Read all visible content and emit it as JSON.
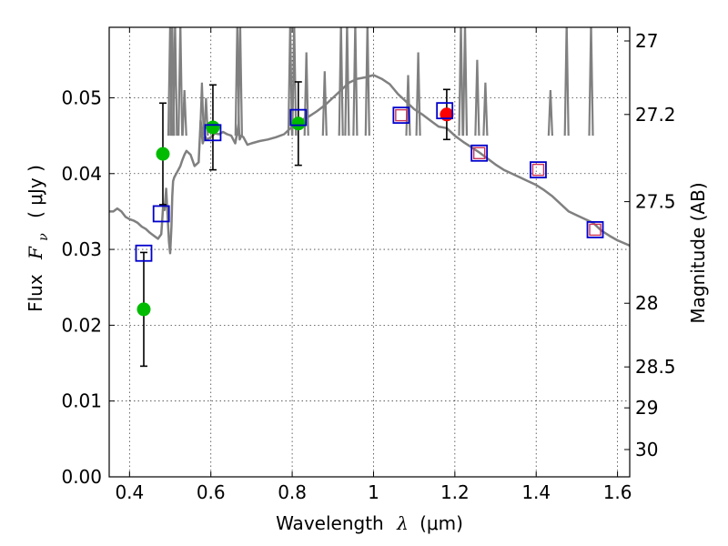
{
  "chart_data": {
    "type": "scatter",
    "title": "",
    "xlabel": "Wavelength",
    "xlabel_symbol": "λ",
    "xlabel_unit": "(μm)",
    "ylabel_prefix": "Flux",
    "ylabel_symbol": "F",
    "ylabel_subscript": "ν",
    "ylabel_unit": "( μJy )",
    "y2label": "Magnitude (AB)",
    "xlim": [
      0.35,
      1.63
    ],
    "ylim": [
      0.0,
      0.0593
    ],
    "grid": true,
    "x_ticks": [
      0.4,
      0.6,
      0.8,
      1.0,
      1.2,
      1.4,
      1.6
    ],
    "x_tick_labels": [
      "0.4",
      "0.6",
      "0.8",
      "1",
      "1.2",
      "1.4",
      "1.6"
    ],
    "y_ticks": [
      0.0,
      0.01,
      0.02,
      0.03,
      0.04,
      0.05
    ],
    "y_tick_labels": [
      "0.00",
      "0.01",
      "0.02",
      "0.03",
      "0.04",
      "0.05"
    ],
    "y2_ticks": [
      {
        "label": "27",
        "flux": 0.0575
      },
      {
        "label": "27.2",
        "flux": 0.0478
      },
      {
        "label": "27.5",
        "flux": 0.0363
      },
      {
        "label": "28",
        "flux": 0.0229
      },
      {
        "label": "28.5",
        "flux": 0.0145
      },
      {
        "label": "29",
        "flux": 0.0091
      },
      {
        "label": "30",
        "flux": 0.0036
      }
    ],
    "series": [
      {
        "name": "model spectrum",
        "kind": "line",
        "color": "#808080",
        "x": [
          0.35,
          0.36,
          0.37,
          0.38,
          0.39,
          0.4,
          0.41,
          0.42,
          0.43,
          0.44,
          0.45,
          0.46,
          0.465,
          0.47,
          0.478,
          0.48,
          0.483,
          0.486,
          0.49,
          0.497,
          0.5,
          0.503,
          0.505,
          0.507,
          0.51,
          0.515,
          0.52,
          0.525,
          0.53,
          0.535,
          0.54,
          0.55,
          0.56,
          0.57,
          0.575,
          0.58,
          0.585,
          0.59,
          0.6,
          0.61,
          0.62,
          0.63,
          0.64,
          0.65,
          0.66,
          0.665,
          0.668,
          0.671,
          0.675,
          0.68,
          0.69,
          0.7,
          0.72,
          0.74,
          0.76,
          0.78,
          0.8,
          0.82,
          0.84,
          0.86,
          0.88,
          0.9,
          0.92,
          0.94,
          0.96,
          0.98,
          1.0,
          1.02,
          1.04,
          1.06,
          1.08,
          1.1,
          1.12,
          1.14,
          1.16,
          1.18,
          1.2,
          1.22,
          1.24,
          1.26,
          1.28,
          1.3,
          1.32,
          1.34,
          1.36,
          1.38,
          1.4,
          1.42,
          1.44,
          1.46,
          1.48,
          1.5,
          1.52,
          1.54,
          1.56,
          1.58,
          1.6,
          1.63
        ],
        "y": [
          0.035,
          0.035,
          0.0354,
          0.035,
          0.0343,
          0.034,
          0.0338,
          0.0335,
          0.033,
          0.0327,
          0.0322,
          0.0318,
          0.0316,
          0.0314,
          0.032,
          0.0335,
          0.036,
          0.0352,
          0.038,
          0.031,
          0.0295,
          0.033,
          0.037,
          0.039,
          0.0395,
          0.04,
          0.0405,
          0.041,
          0.0418,
          0.0425,
          0.043,
          0.0425,
          0.041,
          0.0415,
          0.047,
          0.044,
          0.045,
          0.0445,
          0.0448,
          0.0453,
          0.0452,
          0.0455,
          0.0452,
          0.045,
          0.044,
          0.0455,
          0.0465,
          0.0445,
          0.045,
          0.0448,
          0.0438,
          0.044,
          0.0443,
          0.0445,
          0.0448,
          0.0452,
          0.0462,
          0.047,
          0.0475,
          0.0482,
          0.049,
          0.05,
          0.051,
          0.052,
          0.0525,
          0.0527,
          0.053,
          0.0525,
          0.0518,
          0.0505,
          0.0495,
          0.0485,
          0.0478,
          0.047,
          0.0462,
          0.046,
          0.045,
          0.0442,
          0.0435,
          0.0428,
          0.042,
          0.0412,
          0.0405,
          0.04,
          0.0395,
          0.039,
          0.0385,
          0.0378,
          0.037,
          0.036,
          0.035,
          0.0345,
          0.034,
          0.0335,
          0.0325,
          0.0318,
          0.0312,
          0.0305
        ]
      },
      {
        "name": "emission lines",
        "kind": "spikes",
        "color": "#808080",
        "x": [
          0.5,
          0.505,
          0.512,
          0.525,
          0.535,
          0.578,
          0.588,
          0.665,
          0.672,
          0.795,
          0.805,
          0.835,
          0.88,
          0.92,
          0.935,
          0.955,
          0.985,
          1.085,
          1.11,
          1.215,
          1.225,
          1.255,
          1.275,
          1.435,
          1.475,
          1.535
        ],
        "y": [
          0.06,
          0.06,
          0.06,
          0.06,
          0.051,
          0.052,
          0.05,
          0.06,
          0.06,
          0.06,
          0.06,
          0.056,
          0.0535,
          0.06,
          0.06,
          0.06,
          0.06,
          0.053,
          0.056,
          0.06,
          0.06,
          0.055,
          0.052,
          0.051,
          0.06,
          0.06
        ]
      },
      {
        "name": "observed photometry",
        "kind": "points",
        "marker": "circle",
        "color": "#00bb00",
        "x": [
          0.435,
          0.482,
          0.605,
          0.815
        ],
        "y": [
          0.0221,
          0.0426,
          0.0461,
          0.0466
        ],
        "yerr": [
          0.0075,
          0.0067,
          0.0056,
          0.0055
        ]
      },
      {
        "name": "observed photometry (red)",
        "kind": "points",
        "marker": "circle",
        "color": "#ff0000",
        "x": [
          1.18
        ],
        "y": [
          0.0478
        ],
        "yerr": [
          0.0033
        ]
      },
      {
        "name": "model photometry",
        "kind": "points",
        "marker": "open-square",
        "color": "#0000cc",
        "x": [
          0.435,
          0.478,
          0.605,
          0.815,
          1.068,
          1.175,
          1.26,
          1.405,
          1.545
        ],
        "y": [
          0.0295,
          0.0347,
          0.0454,
          0.0474,
          0.0477,
          0.0483,
          0.0427,
          0.0405,
          0.0326
        ]
      },
      {
        "name": "model photometry (inner)",
        "kind": "points",
        "marker": "open-square-small",
        "color": "#cc3355",
        "x": [
          1.068,
          1.26,
          1.405,
          1.545
        ],
        "y": [
          0.0477,
          0.0427,
          0.0405,
          0.0326
        ]
      }
    ]
  }
}
